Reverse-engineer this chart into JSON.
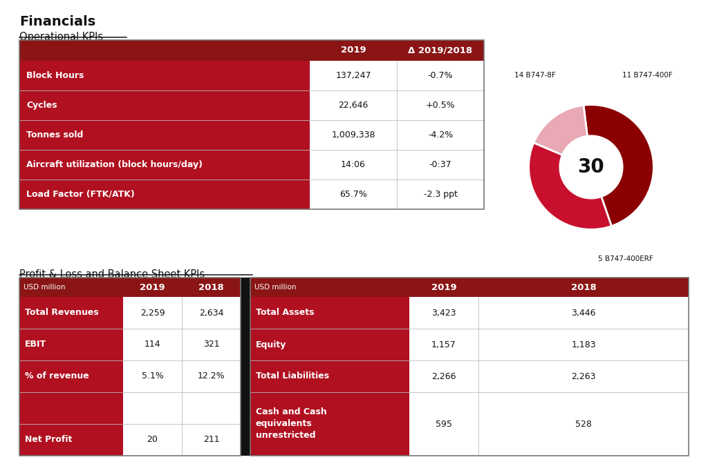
{
  "title": "Financials",
  "section1_title": "Operational KPIs",
  "section2_title": "Profit & Loss and Balance Sheet KPIs",
  "op_header": [
    "",
    "2019",
    "Δ 2019/2018"
  ],
  "op_rows": [
    [
      "Block Hours",
      "137,247",
      "-0.7%"
    ],
    [
      "Cycles",
      "22,646",
      "+0.5%"
    ],
    [
      "Tonnes sold",
      "1,009,338",
      "-4.2%"
    ],
    [
      "Aircraft utilization (block hours/day)",
      "14:06",
      "-0:37"
    ],
    [
      "Load Factor (FTK/ATK)",
      "65.7%",
      "-2.3 ppt"
    ]
  ],
  "pl_header_left": [
    "USD million",
    "2019",
    "2018"
  ],
  "pl_rows_left": [
    [
      "Total Revenues",
      "2,259",
      "2,634"
    ],
    [
      "EBIT",
      "114",
      "321"
    ],
    [
      "% of revenue",
      "5.1%",
      "12.2%"
    ],
    [
      "",
      "",
      ""
    ],
    [
      "Net Profit",
      "20",
      "211"
    ]
  ],
  "pl_header_right": [
    "USD million",
    "2019",
    "2018"
  ],
  "pl_rows_right": [
    [
      "Total Assets",
      "3,423",
      "3,446"
    ],
    [
      "Equity",
      "1,157",
      "1,183"
    ],
    [
      "Total Liabilities",
      "2,266",
      "2,263"
    ],
    [
      "Cash and Cash\nequivalents\nunrestricted",
      "595",
      "528"
    ]
  ],
  "donut_values": [
    14,
    11,
    5
  ],
  "donut_labels": [
    "14 B747-8F",
    "11 B747-400F",
    "5 B747-400ERF"
  ],
  "donut_colors": [
    "#8B0000",
    "#C8102E",
    "#E8A8B4"
  ],
  "donut_center_text": "30",
  "dark_red": "#8B1515",
  "row_red": "#B01020",
  "white": "#FFFFFF",
  "black": "#111111",
  "gray_line": "#BBBBBB",
  "border_color": "#777777",
  "black_sep": "#111111"
}
